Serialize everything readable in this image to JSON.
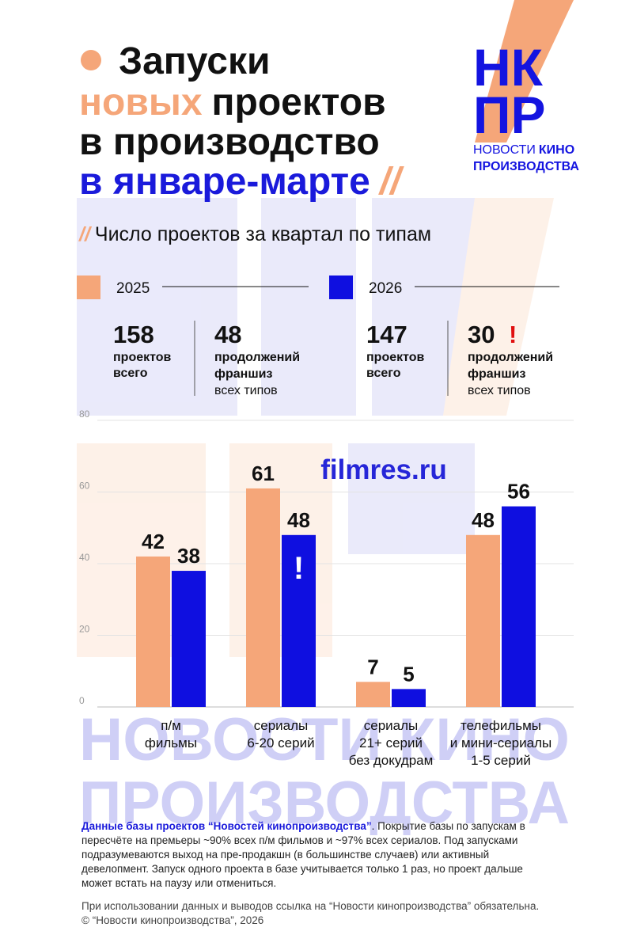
{
  "header": {
    "title": {
      "line1": "Запуски",
      "accent": "новых",
      "line2_rest": "проектов",
      "line3": "в производство",
      "line4": "в январе-марте",
      "slashes": "//"
    }
  },
  "logo": {
    "letters1": "НК",
    "letters2": "ПР",
    "word1": "НОВОСТИ",
    "word2": "КИНО",
    "word3": "ПРОИЗВОДСТВА"
  },
  "subtitle": {
    "slashes": "//",
    "text": "Число проектов за квартал по типам"
  },
  "stats": [
    {
      "total": 158,
      "total_label": [
        "проектов",
        "всего"
      ],
      "franchises": 48,
      "franchise_label": [
        "продолжений",
        "франшиз",
        "всех типов"
      ]
    },
    {
      "total": 147,
      "total_label": [
        "проектов",
        "всего"
      ],
      "franchises": 30,
      "alert": "!",
      "franchise_label": [
        "продолжений",
        "франшиз",
        "всех типов"
      ]
    }
  ],
  "chart_data": {
    "type": "bar",
    "categories": [
      [
        "п/м",
        "фильмы"
      ],
      [
        "сериалы",
        "6-20 серий"
      ],
      [
        "сериалы",
        "21+ серий",
        "без докудрам"
      ],
      [
        "телефильмы",
        "и мини-сериалы",
        "1-5 серий"
      ]
    ],
    "series": [
      {
        "name": "2025",
        "color": "#f5a679",
        "values": [
          42,
          61,
          7,
          48
        ]
      },
      {
        "name": "2026",
        "color": "#0f0fe0",
        "values": [
          38,
          48,
          5,
          56
        ]
      }
    ],
    "annotation": "!",
    "ylim": [
      0,
      80
    ],
    "yticks": [
      0,
      20,
      40,
      60,
      80
    ],
    "grid": true
  },
  "watermarks": {
    "site": "filmres.ru",
    "brand": [
      "НОВОСТИ КИНО",
      "ПРОИЗВОДСТВА"
    ]
  },
  "footer": {
    "source": "Данные базы проектов “Новостей кинопроизводства”",
    "lines": [
      ". Покрытие базы по запускам в",
      "пересчёте на премьеры ~90% всех п/м фильмов и ~97% всех сериалов. Под запусками",
      "подразумеваются выход на пре-продакшн (в большинстве случаев) или активный",
      "девелопмент. Запуск одного проекта в базе учитывается только 1 раз, но проект дальше",
      "может встать на паузу или отмениться."
    ],
    "notice": [
      "При использовании данных и выводов ссылка на “Новости кинопроизводства” обязательна.",
      "© “Новости кинопроизводства”, 2026"
    ]
  }
}
